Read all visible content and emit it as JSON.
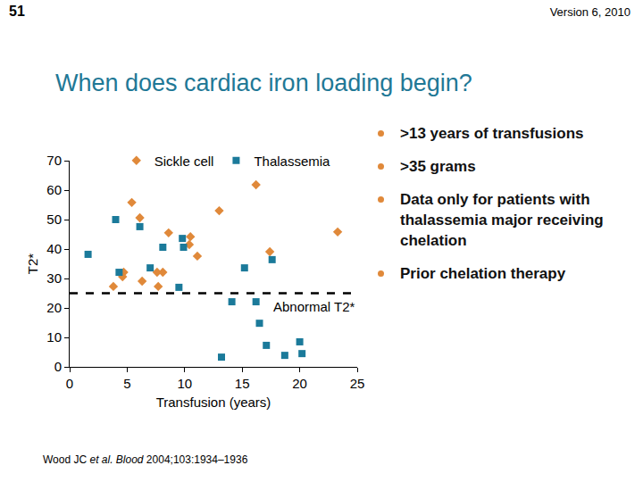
{
  "slide": {
    "page_number": "51",
    "version": "Version 6, 2010",
    "title": "When does cardiac iron loading begin?",
    "bullets": [
      ">13 years of transfusions",
      ">35 grams",
      "Data only for patients with thalassemia major receiving chelation",
      "Prior chelation therapy"
    ],
    "citation": [
      {
        "text": "Wood JC "
      },
      {
        "text": "et al.",
        "italic": true
      },
      {
        "text": " "
      },
      {
        "text": "Blood",
        "italic": true
      },
      {
        "text": " 2004;103:1934–1936"
      }
    ]
  },
  "chart_data": {
    "type": "scatter",
    "x_label": "Transfusion (years)",
    "y_label": "T2*",
    "xlim": [
      0,
      25
    ],
    "xticks": [
      0,
      5,
      10,
      15,
      20,
      25
    ],
    "ylim": [
      0,
      70
    ],
    "yticks": [
      0,
      10,
      20,
      30,
      40,
      50,
      60,
      70
    ],
    "grid": false,
    "legend": "top",
    "reference_line": {
      "y": 25,
      "label": "Abnormal T2*",
      "line_style": "dashed"
    },
    "series": [
      {
        "name": "Sickle cell",
        "color": "#e0893a",
        "marker": "diamond",
        "x": [
          5.4,
          6.1,
          13.0,
          16.2,
          23.3,
          8.6,
          10.5,
          10.4,
          11.1,
          17.4,
          4.7,
          4.6,
          3.8,
          6.3,
          7.6,
          8.1,
          7.7
        ],
        "values": [
          55.8,
          50.6,
          53,
          61.8,
          45.8,
          45.5,
          44.2,
          41.5,
          37.6,
          39.1,
          32.1,
          30.6,
          27.3,
          29.1,
          32.1,
          32.1,
          27.3
        ]
      },
      {
        "name": "Thalassemia",
        "color": "#1b7a9a",
        "marker": "square",
        "x": [
          4.0,
          6.1,
          1.6,
          8.1,
          9.8,
          9.9,
          15.2,
          17.6,
          4.3,
          7.0,
          9.5,
          14.1,
          16.2,
          16.5,
          13.2,
          17.1,
          20.0,
          18.7,
          20.2
        ],
        "values": [
          50,
          47.6,
          38.2,
          40.6,
          43.6,
          40.6,
          33.6,
          36.4,
          32.1,
          33.6,
          27,
          22.1,
          22.1,
          14.8,
          3.3,
          7.3,
          8.5,
          3.9,
          4.5
        ]
      }
    ]
  }
}
